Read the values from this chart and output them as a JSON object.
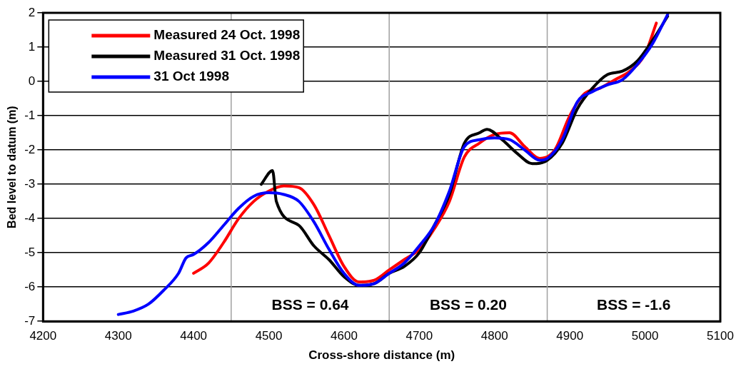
{
  "chart_data": {
    "type": "line",
    "xlabel": "Cross-shore distance (m)",
    "ylabel": "Bed level to datum (m)",
    "xlim": [
      4200,
      5100
    ],
    "xticks": [
      4200,
      4300,
      4400,
      4500,
      4600,
      4700,
      4800,
      4900,
      5000,
      5100
    ],
    "ylim": [
      -7,
      2
    ],
    "yticks": [
      -7,
      -6,
      -5,
      -4,
      -3,
      -2,
      -1,
      0,
      1,
      2
    ],
    "grid": "y",
    "legend": "top left",
    "marker": "none",
    "line_style": "solid",
    "ref_lines": [
      {
        "axis": "x",
        "value": 4450,
        "color": "#a0a0a0"
      },
      {
        "axis": "x",
        "value": 4660,
        "color": "#a0a0a0"
      },
      {
        "axis": "x",
        "value": 4870,
        "color": "#a0a0a0"
      }
    ],
    "annotations": [
      "BSS = 0.64",
      "BSS = 0.20",
      "BSS = -1.6"
    ],
    "series": [
      {
        "name": "Measured 24 Oct. 1998",
        "color": "#ff0000",
        "x": [
          4400,
          4420,
          4440,
          4460,
          4480,
          4500,
          4520,
          4540,
          4560,
          4580,
          4600,
          4620,
          4640,
          4660,
          4680,
          4700,
          4720,
          4740,
          4760,
          4780,
          4800,
          4820,
          4840,
          4860,
          4880,
          4900,
          4920,
          4940,
          4960,
          4980,
          5000,
          5015
        ],
        "values": [
          -5.6,
          -5.3,
          -4.7,
          -4.0,
          -3.5,
          -3.2,
          -3.05,
          -3.1,
          -3.6,
          -4.5,
          -5.4,
          -5.85,
          -5.8,
          -5.5,
          -5.2,
          -4.9,
          -4.3,
          -3.5,
          -2.2,
          -1.8,
          -1.55,
          -1.5,
          -1.9,
          -2.25,
          -2.0,
          -1.0,
          -0.35,
          -0.2,
          0.05,
          0.3,
          0.8,
          1.7
        ]
      },
      {
        "name": "Measured 31 Oct. 1998",
        "color": "#000000",
        "x": [
          4490,
          4505,
          4510,
          4540,
          4560,
          4580,
          4600,
          4620,
          4640,
          4660,
          4680,
          4700,
          4720,
          4740,
          4760,
          4780,
          4790,
          4810,
          4830,
          4850,
          4870,
          4890,
          4910,
          4930,
          4950,
          4970,
          4990,
          5010,
          5030
        ],
        "values": [
          -3.0,
          -2.6,
          -3.5,
          -4.2,
          -4.8,
          -5.2,
          -5.7,
          -5.95,
          -5.9,
          -5.6,
          -5.4,
          -5.0,
          -4.2,
          -3.3,
          -1.8,
          -1.5,
          -1.4,
          -1.7,
          -2.1,
          -2.4,
          -2.3,
          -1.8,
          -0.8,
          -0.2,
          0.2,
          0.3,
          0.6,
          1.2,
          1.9
        ]
      },
      {
        "name": "31 Oct 1998",
        "color": "#0000ff",
        "x": [
          4300,
          4320,
          4340,
          4360,
          4380,
          4390,
          4400,
          4420,
          4440,
          4460,
          4480,
          4500,
          4520,
          4540,
          4560,
          4580,
          4600,
          4620,
          4640,
          4660,
          4680,
          4700,
          4720,
          4740,
          4760,
          4780,
          4800,
          4820,
          4840,
          4860,
          4870,
          4890,
          4910,
          4930,
          4950,
          4970,
          4990,
          5010,
          5030
        ],
        "values": [
          -6.8,
          -6.7,
          -6.5,
          -6.1,
          -5.6,
          -5.15,
          -5.05,
          -4.7,
          -4.2,
          -3.7,
          -3.35,
          -3.25,
          -3.3,
          -3.5,
          -4.1,
          -4.9,
          -5.6,
          -5.95,
          -5.9,
          -5.6,
          -5.3,
          -4.8,
          -4.2,
          -3.2,
          -1.9,
          -1.7,
          -1.65,
          -1.7,
          -2.0,
          -2.3,
          -2.25,
          -1.7,
          -0.6,
          -0.3,
          -0.1,
          0.05,
          0.5,
          1.1,
          1.95
        ]
      }
    ]
  }
}
